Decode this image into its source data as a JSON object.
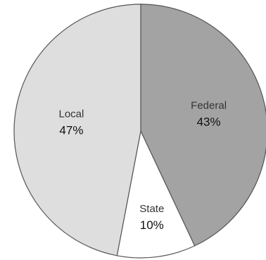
{
  "chart_data": {
    "type": "pie",
    "title": "",
    "start_angle_deg": 0,
    "direction": "clockwise",
    "slices": [
      {
        "label": "Federal",
        "value": 43,
        "value_label": "43%",
        "color": "#a3a3a3"
      },
      {
        "label": "State",
        "value": 10,
        "value_label": "10%",
        "color": "#ffffff"
      },
      {
        "label": "Local",
        "value": 47,
        "value_label": "47%",
        "color": "#dedede"
      }
    ]
  }
}
